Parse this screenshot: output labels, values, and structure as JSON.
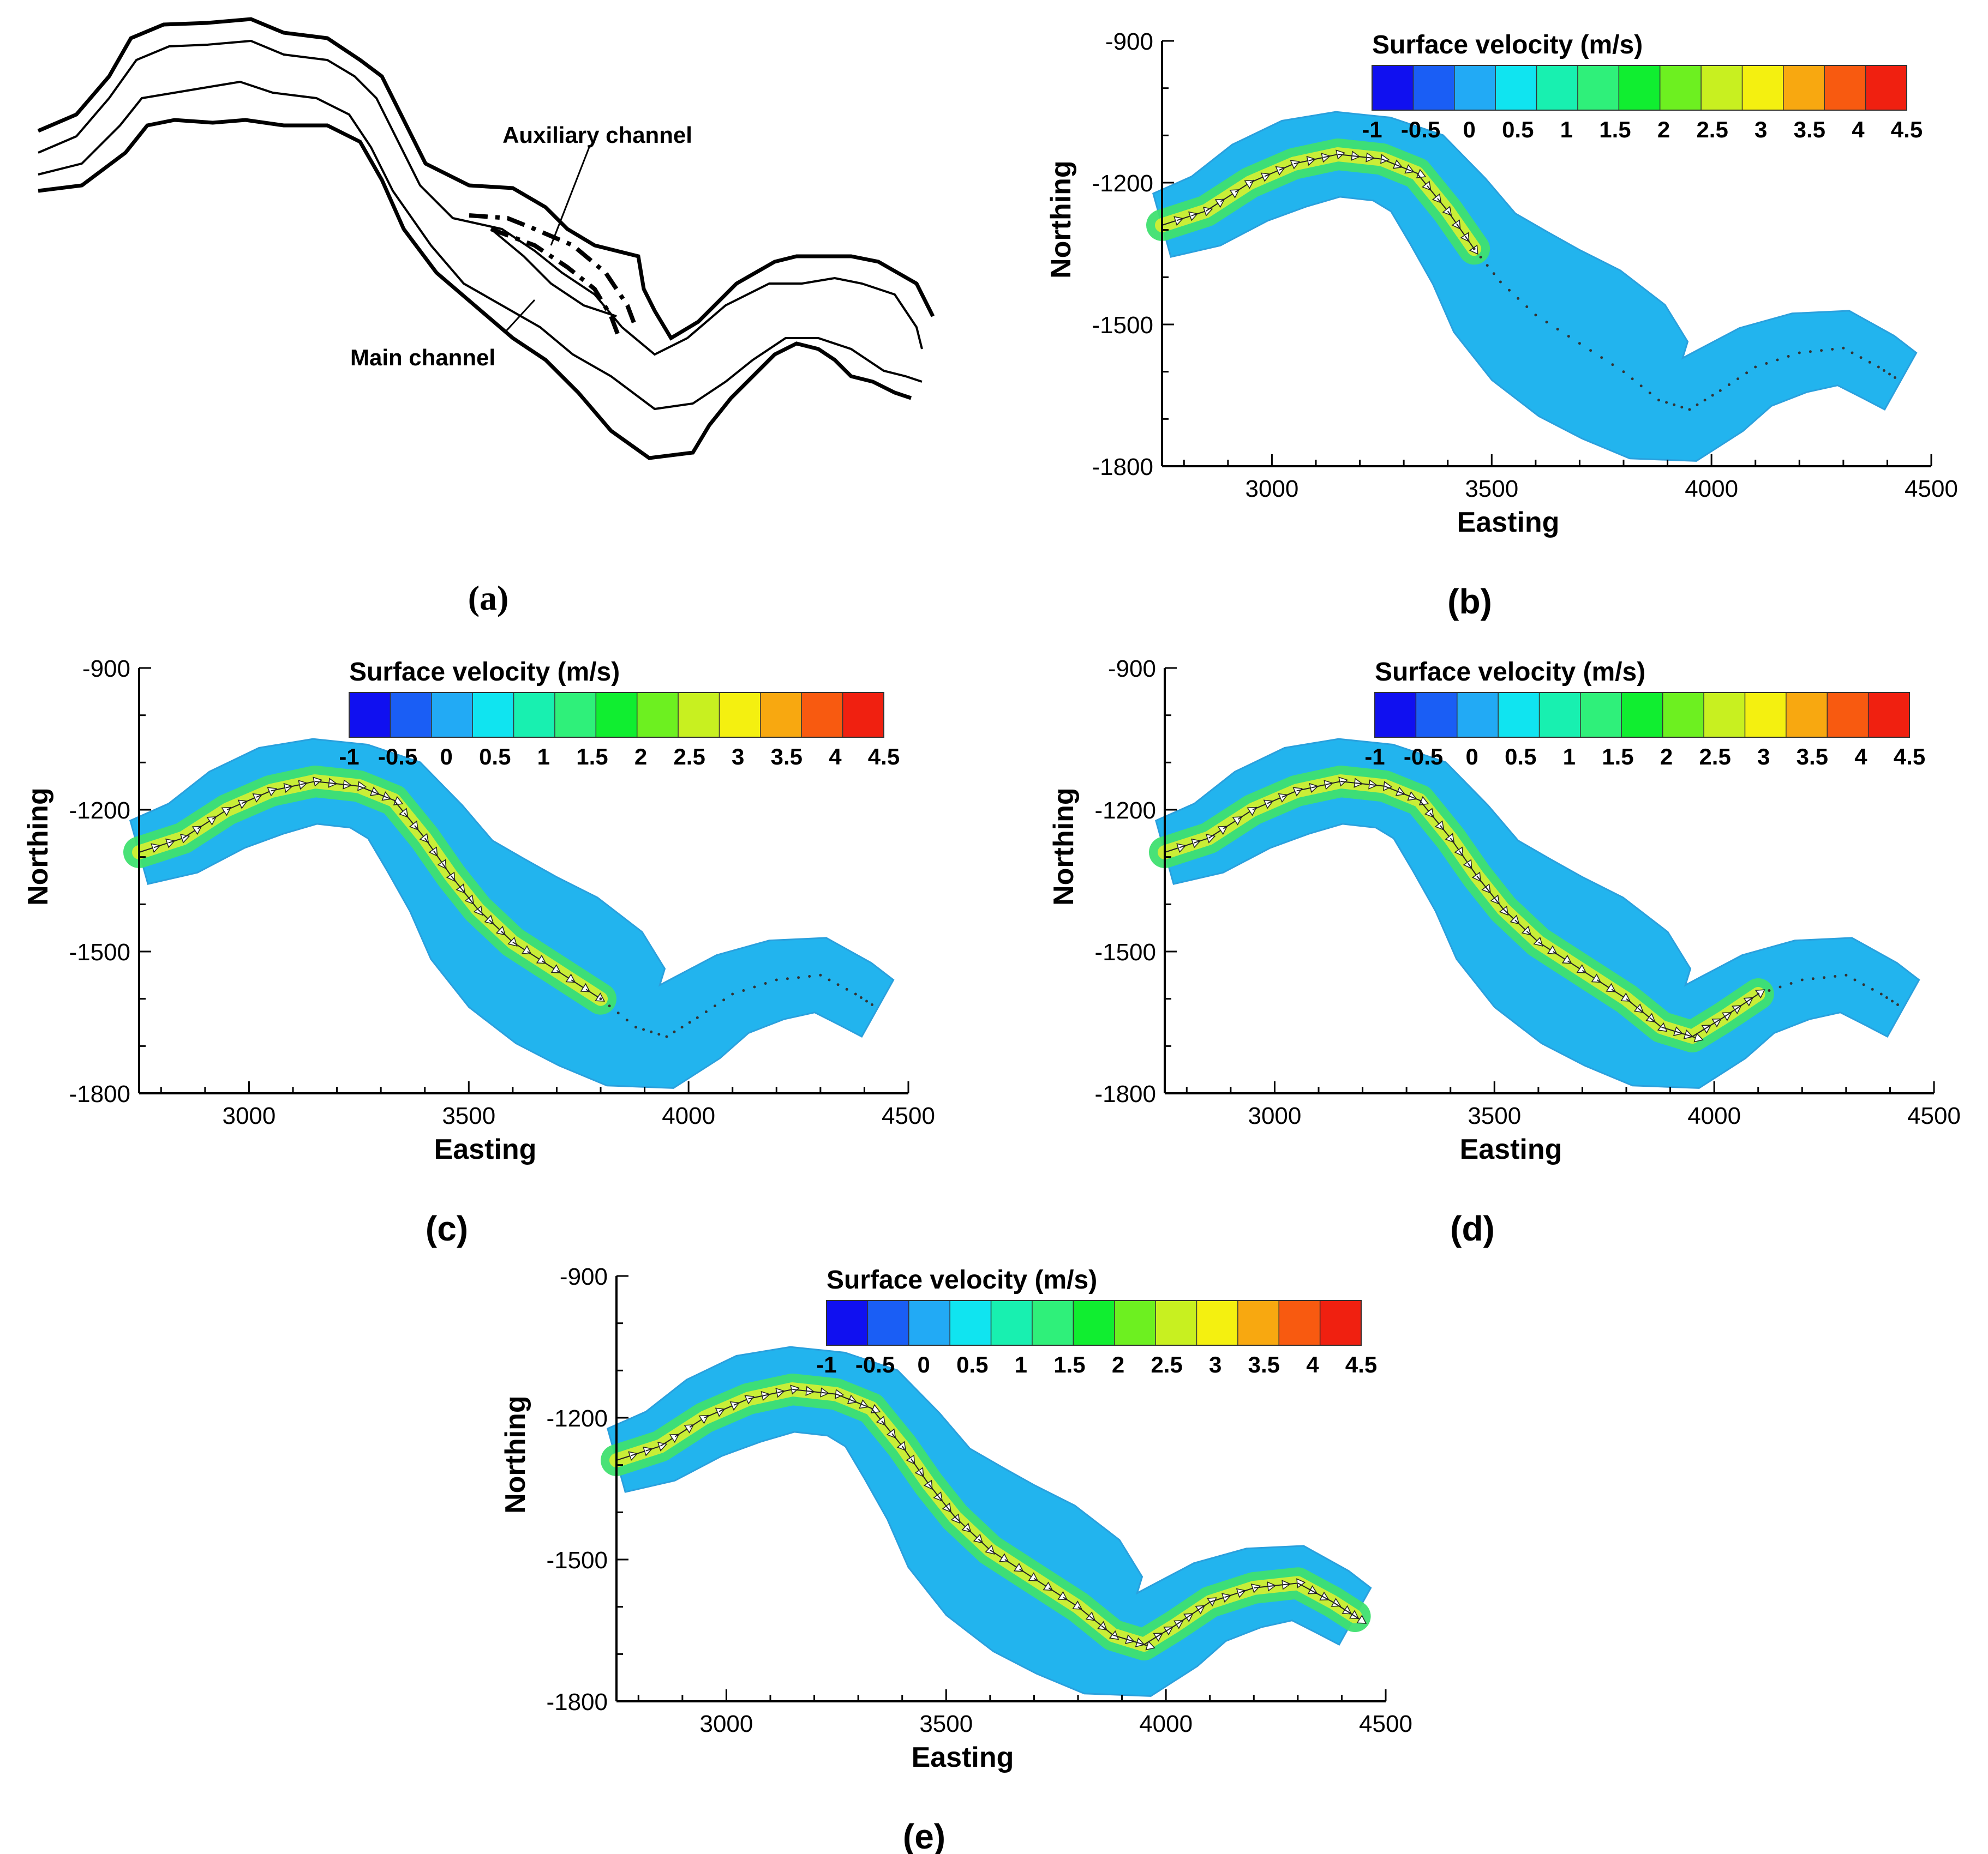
{
  "sketch": {
    "panel_label": "(a)",
    "aux_label": "Auxiliary channel",
    "main_label": "Main channel"
  },
  "common": {
    "colorbar_title": "Surface velocity (m/s)",
    "colorbar_ticks": [
      "-1",
      "-0.5",
      "0",
      "0.5",
      "1",
      "1.5",
      "2",
      "2.5",
      "3",
      "3.5",
      "4",
      "4.5"
    ],
    "colorbar_colors": [
      "#1010f0",
      "#1a5ef5",
      "#22aaf5",
      "#10e4f0",
      "#18f0b0",
      "#2ff07a",
      "#10ee30",
      "#6df020",
      "#c8f020",
      "#f4f010",
      "#f8a810",
      "#f85a10",
      "#f02010"
    ],
    "water_color": "#22b4ee",
    "x_label": "Easting",
    "y_label": "Northing",
    "x_ticks": [
      "3000",
      "3500",
      "4000",
      "4500"
    ],
    "y_ticks": [
      "-900",
      "-1200",
      "-1500",
      "-1800"
    ]
  },
  "chart_data": [
    {
      "type": "map",
      "panel": "(b)",
      "title": "Surface velocity (m/s)",
      "xlabel": "Easting",
      "ylabel": "Northing",
      "xlim": [
        2750,
        4500
      ],
      "ylim": [
        -1800,
        -900
      ],
      "xticks": [
        3000,
        3500,
        4000,
        4500
      ],
      "yticks": [
        -900,
        -1200,
        -1500,
        -1800
      ],
      "colorbar_range": [
        -1,
        4.5
      ],
      "fast_segment": [
        0,
        0.42
      ]
    },
    {
      "type": "map",
      "panel": "(c)",
      "title": "Surface velocity (m/s)",
      "xlabel": "Easting",
      "ylabel": "Northing",
      "xlim": [
        2750,
        4500
      ],
      "ylim": [
        -1800,
        -900
      ],
      "xticks": [
        3000,
        3500,
        4000,
        4500
      ],
      "yticks": [
        -900,
        -1200,
        -1500,
        -1800
      ],
      "colorbar_range": [
        -1,
        4.5
      ],
      "fast_segment": [
        0,
        0.62
      ]
    },
    {
      "type": "map",
      "panel": "(d)",
      "title": "Surface velocity (m/s)",
      "xlabel": "Easting",
      "ylabel": "Northing",
      "xlim": [
        2750,
        4500
      ],
      "ylim": [
        -1800,
        -900
      ],
      "xticks": [
        3000,
        3500,
        4000,
        4500
      ],
      "yticks": [
        -900,
        -1200,
        -1500,
        -1800
      ],
      "colorbar_range": [
        -1,
        4.5
      ],
      "fast_segment": [
        0,
        0.8
      ]
    },
    {
      "type": "map",
      "panel": "(e)",
      "title": "Surface velocity (m/s)",
      "xlabel": "Easting",
      "ylabel": "Northing",
      "xlim": [
        2750,
        4500
      ],
      "ylim": [
        -1800,
        -900
      ],
      "xticks": [
        3000,
        3500,
        4000,
        4500
      ],
      "yticks": [
        -900,
        -1200,
        -1500,
        -1800
      ],
      "colorbar_range": [
        -1,
        4.5
      ],
      "fast_segment": [
        0,
        1.0
      ]
    }
  ]
}
